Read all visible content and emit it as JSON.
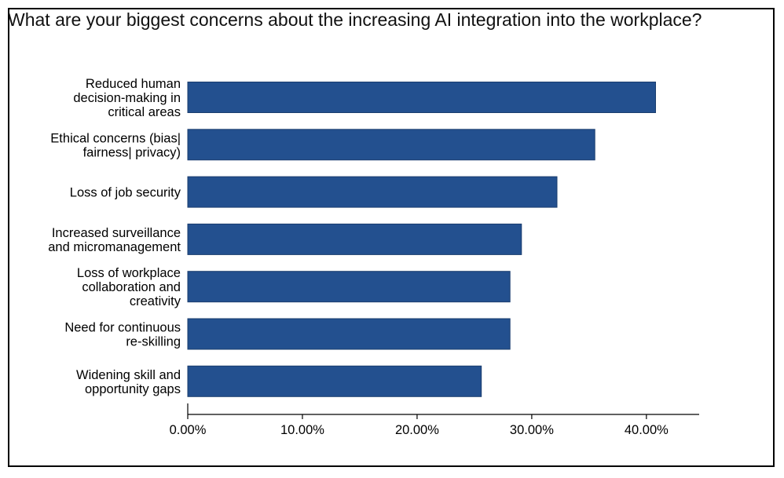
{
  "chart_data": {
    "type": "bar",
    "orientation": "horizontal",
    "title": "What are your biggest concerns about the increasing AI integration into the workplace?",
    "categories": [
      [
        "Reduced human",
        "decision-making in",
        "critical areas"
      ],
      [
        "Ethical concerns (bias|",
        "fairness| privacy)"
      ],
      [
        "Loss of job security"
      ],
      [
        "Increased surveillance",
        "and micromanagement"
      ],
      [
        "Loss of workplace",
        "collaboration and",
        "creativity"
      ],
      [
        "Need for continuous",
        "re-skilling"
      ],
      [
        "Widening skill and",
        "opportunity gaps"
      ]
    ],
    "values": [
      40.8,
      35.5,
      32.2,
      29.1,
      28.1,
      28.1,
      25.6
    ],
    "xlim": [
      0,
      44.6
    ],
    "xticks": [
      0,
      10,
      20,
      30,
      40
    ],
    "xtick_labels": [
      "0.00%",
      "10.00%",
      "20.00%",
      "30.00%",
      "40.00%"
    ],
    "bar_color": "#23508f",
    "xlabel": "",
    "ylabel": ""
  }
}
